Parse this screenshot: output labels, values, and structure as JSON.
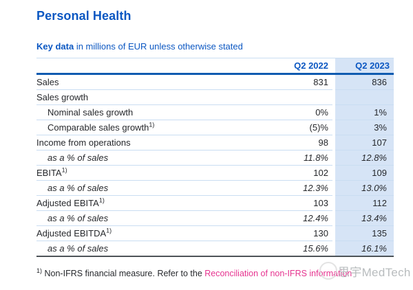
{
  "header": {
    "title": "Personal Health",
    "subtitle_bold": "Key data",
    "subtitle_rest": " in millions of EUR unless otherwise stated"
  },
  "table": {
    "columns": [
      "Q2 2022",
      "Q2 2023"
    ],
    "rows": [
      {
        "label": "Sales",
        "sup": "",
        "indent": false,
        "italic": false,
        "q2_2022": "831",
        "q2_2023": "836"
      },
      {
        "label": "Sales growth",
        "sup": "",
        "indent": false,
        "italic": false,
        "q2_2022": "",
        "q2_2023": ""
      },
      {
        "label": "Nominal sales growth",
        "sup": "",
        "indent": true,
        "italic": false,
        "q2_2022": "0%",
        "q2_2023": "1%"
      },
      {
        "label": "Comparable sales growth",
        "sup": "1)",
        "indent": true,
        "italic": false,
        "q2_2022": "(5)%",
        "q2_2023": "3%"
      },
      {
        "label": "Income from operations",
        "sup": "",
        "indent": false,
        "italic": false,
        "q2_2022": "98",
        "q2_2023": "107"
      },
      {
        "label": "as a % of sales",
        "sup": "",
        "indent": true,
        "italic": true,
        "q2_2022": "11.8%",
        "q2_2023": "12.8%"
      },
      {
        "label": "EBITA",
        "sup": "1)",
        "indent": false,
        "italic": false,
        "q2_2022": "102",
        "q2_2023": "109"
      },
      {
        "label": "as a % of sales",
        "sup": "",
        "indent": true,
        "italic": true,
        "q2_2022": "12.3%",
        "q2_2023": "13.0%"
      },
      {
        "label": "Adjusted EBITA",
        "sup": "1)",
        "indent": false,
        "italic": false,
        "q2_2022": "103",
        "q2_2023": "112"
      },
      {
        "label": "as a % of sales",
        "sup": "",
        "indent": true,
        "italic": true,
        "q2_2022": "12.4%",
        "q2_2023": "13.4%"
      },
      {
        "label": "Adjusted EBITDA",
        "sup": "1)",
        "indent": false,
        "italic": false,
        "q2_2022": "130",
        "q2_2023": "135"
      },
      {
        "label": "as a % of sales",
        "sup": "",
        "indent": true,
        "italic": true,
        "q2_2022": "15.6%",
        "q2_2023": "16.1%"
      }
    ]
  },
  "footnote": {
    "marker": "1)",
    "text": "Non-IFRS financial measure. Refer to the ",
    "link": "Reconciliation of non-IFRS information"
  },
  "watermark": {
    "text": "思宇MedTech",
    "icon": "seal-circle-icon"
  },
  "colors": {
    "brand_blue": "#0b57c2",
    "rule_blue": "#0f5bb0",
    "row_line": "#c9ddf2",
    "highlight": "#d6e4f6",
    "body_text": "#26282c",
    "link_pink": "#e6338f",
    "bottom_rule": "#4d5358",
    "watermark_gray": "#b8bcbe"
  }
}
